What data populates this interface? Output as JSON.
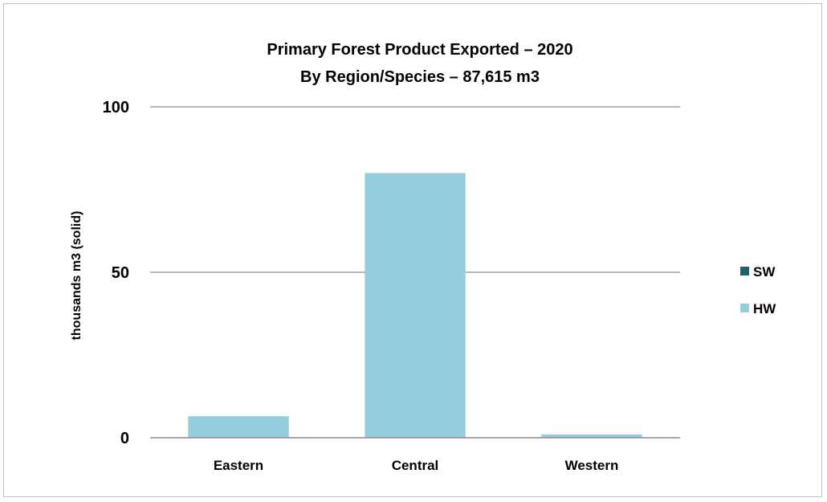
{
  "chart_data": {
    "type": "bar",
    "stacked": true,
    "title": "Primary Forest Product Exported – 2020",
    "subtitle": "By Region/Species – 87,615  m3",
    "ylabel": "thousands m3 (solid)",
    "xlabel": "",
    "categories": [
      "Eastern",
      "Central",
      "Western"
    ],
    "series": [
      {
        "name": "SW",
        "color": "#255e6e",
        "values": [
          0,
          0,
          0
        ]
      },
      {
        "name": "HW",
        "color": "#95cddc",
        "values": [
          6.5,
          80,
          1
        ]
      }
    ],
    "ylim": [
      0,
      100
    ],
    "yticks": [
      0,
      50,
      100
    ],
    "grid": true,
    "legend_position": "right"
  }
}
